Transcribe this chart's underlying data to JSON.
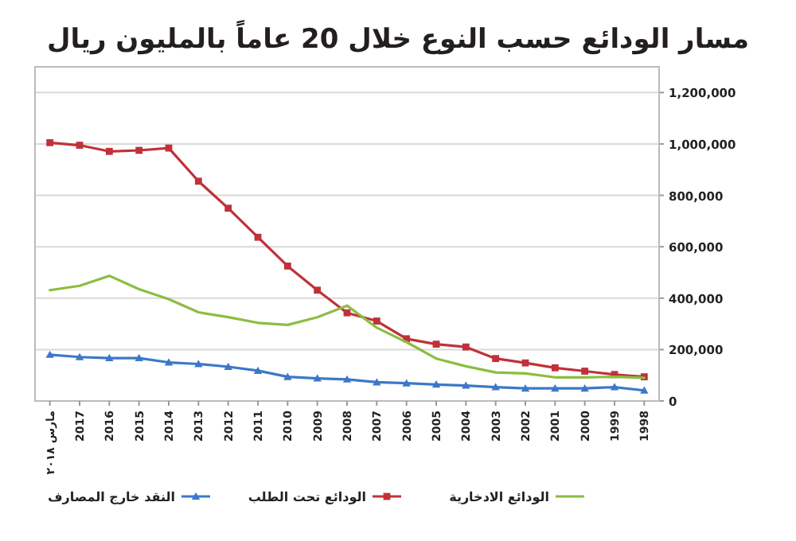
{
  "chart_data": {
    "type": "line",
    "title": "مسار الودائع حسب النوع خلال 20 عاماً بالمليون ريال",
    "categories": [
      "مارس ٢٠١٨",
      "2017",
      "2016",
      "2015",
      "2014",
      "2013",
      "2012",
      "2011",
      "2010",
      "2009",
      "2008",
      "2007",
      "2006",
      "2005",
      "2004",
      "2003",
      "2002",
      "2001",
      "2000",
      "1999",
      "1998"
    ],
    "series": [
      {
        "name": "النقد خارج المصارف",
        "color": "#3c78c8",
        "marker": "triangle",
        "values": [
          180000,
          171000,
          167000,
          167000,
          150000,
          144000,
          133000,
          118000,
          94000,
          88000,
          84000,
          73000,
          69000,
          64000,
          60000,
          54000,
          49000,
          49000,
          49000,
          54000,
          41000
        ]
      },
      {
        "name": "الودائع تحت الطلب",
        "color": "#c0313a",
        "marker": "square",
        "values": [
          1005000,
          995000,
          971000,
          975000,
          984000,
          855000,
          750000,
          637000,
          525000,
          431000,
          343000,
          311000,
          242000,
          221000,
          210000,
          165000,
          148000,
          129000,
          116000,
          103000,
          94000
        ]
      },
      {
        "name": "الودائع الادخارية",
        "color": "#8cbd3f",
        "marker": "none",
        "values": [
          431000,
          448000,
          487000,
          435000,
          396000,
          345000,
          326000,
          304000,
          296000,
          326000,
          371000,
          285000,
          229000,
          165000,
          135000,
          111000,
          107000,
          92000,
          92000,
          94000,
          90000
        ]
      }
    ],
    "ylim": [
      0,
      1300000
    ],
    "yticks": [
      0,
      {
        "value": 200000,
        "label": "200,000"
      },
      {
        "value": 400000,
        "label": "400,000"
      },
      {
        "value": 600000,
        "label": "600,000"
      },
      {
        "value": 800000,
        "label": "800,000"
      },
      {
        "value": 1000000,
        "label": "1,000,000"
      },
      {
        "value": 1200000,
        "label": "1,200,000"
      }
    ],
    "grid": "y",
    "legend": "bottom"
  }
}
